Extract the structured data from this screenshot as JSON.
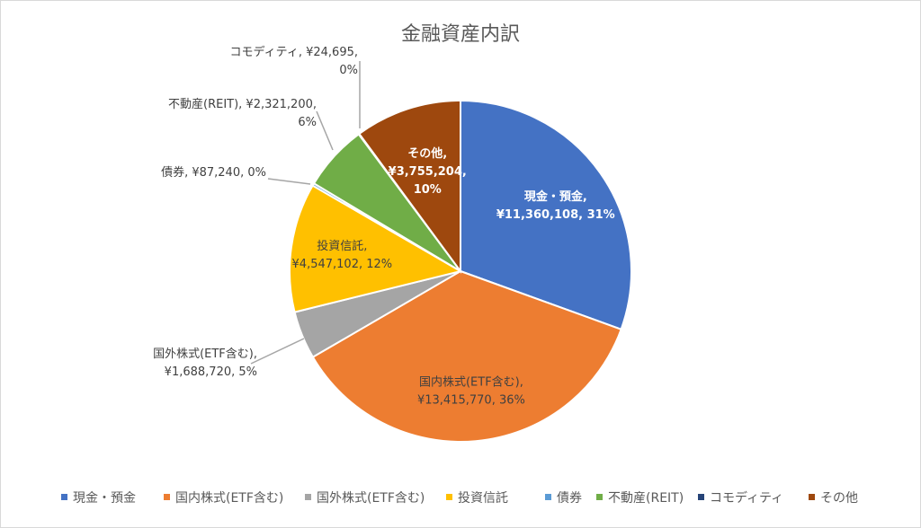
{
  "chart_data": {
    "type": "pie",
    "title": "金融資産内訳",
    "legend_position": "bottom",
    "slices": [
      {
        "name": "現金・預金",
        "value": 11360108,
        "value_label": "¥11,360,108",
        "percent_label": "31%",
        "color": "#4472C4"
      },
      {
        "name": "国内株式(ETF含む)",
        "value": 13415770,
        "value_label": "¥13,415,770",
        "percent_label": "36%",
        "color": "#ED7D31"
      },
      {
        "name": "国外株式(ETF含む)",
        "value": 1688720,
        "value_label": "¥1,688,720",
        "percent_label": "5%",
        "color": "#A5A5A5"
      },
      {
        "name": "投資信託",
        "value": 4547102,
        "value_label": "¥4,547,102",
        "percent_label": "12%",
        "color": "#FFC000"
      },
      {
        "name": "債券",
        "value": 87240,
        "value_label": "¥87,240",
        "percent_label": "0%",
        "color": "#5B9BD5"
      },
      {
        "name": "不動産(REIT)",
        "value": 2321200,
        "value_label": "¥2,321,200",
        "percent_label": "6%",
        "color": "#70AD47"
      },
      {
        "name": "コモディティ",
        "value": 24695,
        "value_label": "¥24,695",
        "percent_label": "0%",
        "color": "#264478"
      },
      {
        "name": "その他",
        "value": 3755204,
        "value_label": "¥3,755,204",
        "percent_label": "10%",
        "color": "#9E480E"
      }
    ]
  }
}
